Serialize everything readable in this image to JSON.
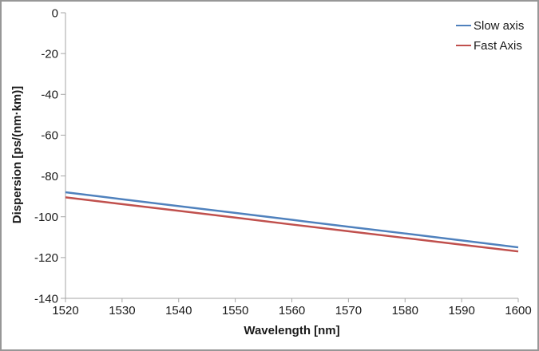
{
  "chart_data": {
    "type": "line",
    "title": "",
    "xlabel": "Wavelength [nm]",
    "ylabel": "Dispersion [ps/(nm·km)]",
    "xlim": [
      1520,
      1600
    ],
    "ylim": [
      -140,
      0
    ],
    "x_ticks": [
      1520,
      1530,
      1540,
      1550,
      1560,
      1570,
      1580,
      1590,
      1600
    ],
    "y_ticks": [
      0,
      -20,
      -40,
      -60,
      -80,
      -100,
      -120,
      -140
    ],
    "grid": false,
    "legend_position": "top-right",
    "axis_color": "#A6A6A6",
    "tick_label_color": "#1a1a1a",
    "x": [
      1520,
      1530,
      1540,
      1550,
      1560,
      1570,
      1580,
      1590,
      1600
    ],
    "series": [
      {
        "name": "Slow axis",
        "color": "#4F81BD",
        "values": [
          -88.0,
          -91.4,
          -94.8,
          -98.1,
          -101.5,
          -104.9,
          -108.2,
          -111.6,
          -115.0
        ]
      },
      {
        "name": "Fast Axis",
        "color": "#C0504D",
        "values": [
          -90.5,
          -93.8,
          -97.1,
          -100.4,
          -103.8,
          -107.1,
          -110.4,
          -113.7,
          -117.0
        ]
      }
    ]
  }
}
